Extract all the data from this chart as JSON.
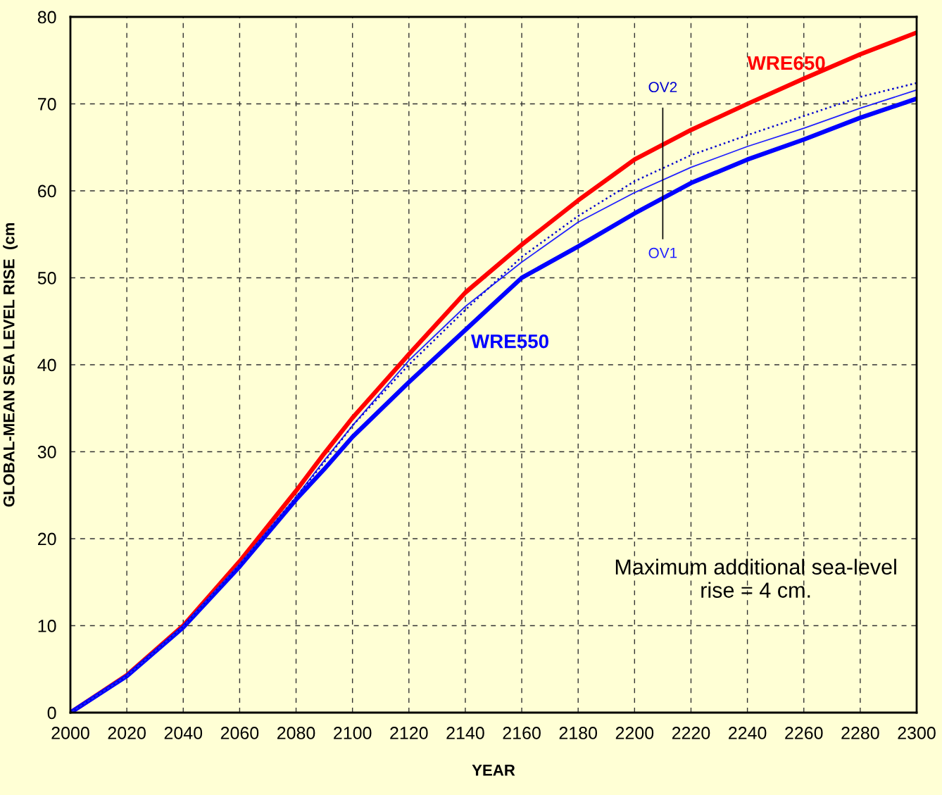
{
  "chart_data": {
    "type": "line",
    "xlabel": "YEAR",
    "ylabel": "GLOBAL-MEAN SEA LEVEL RISE  (cm",
    "x": [
      2000,
      2020,
      2040,
      2060,
      2080,
      2090,
      2100,
      2120,
      2140,
      2160,
      2180,
      2200,
      2220,
      2240,
      2260,
      2280,
      2300
    ],
    "series": [
      {
        "name": "WRE650",
        "color": "#ff0000",
        "line_style": "solid",
        "values": [
          0,
          4.3,
          10,
          17.4,
          25.5,
          29.8,
          33.9,
          41.2,
          48.3,
          53.8,
          58.9,
          63.6,
          67.0,
          70.0,
          72.9,
          75.7,
          78.2
        ]
      },
      {
        "name": "WRE550",
        "color": "#0000ff",
        "line_style": "solid",
        "values": [
          0,
          4.2,
          9.8,
          16.8,
          24.5,
          28.0,
          31.7,
          38.0,
          44.0,
          50.0,
          53.6,
          57.4,
          60.9,
          63.6,
          65.9,
          68.4,
          70.6
        ]
      },
      {
        "name": "OV1",
        "color": "#2020ff",
        "line_style": "solid",
        "values": [
          0,
          4.2,
          9.9,
          17.1,
          24.8,
          29.0,
          33.0,
          40.5,
          46.7,
          51.8,
          56.4,
          59.8,
          62.7,
          65.1,
          67.2,
          69.5,
          71.6
        ]
      },
      {
        "name": "OV2",
        "color": "#0000d0",
        "line_style": "dotted",
        "values": [
          0,
          4.2,
          9.9,
          17.0,
          24.8,
          28.8,
          33.0,
          40.0,
          46.3,
          52.4,
          57.1,
          61.1,
          64.1,
          66.4,
          68.6,
          70.8,
          72.4
        ]
      }
    ],
    "xlim": [
      2000,
      2300
    ],
    "xticks": [
      2000,
      2020,
      2040,
      2060,
      2080,
      2100,
      2120,
      2140,
      2160,
      2180,
      2200,
      2220,
      2240,
      2260,
      2280,
      2300
    ],
    "ylim": [
      0,
      80
    ],
    "yticks": [
      0,
      10,
      20,
      30,
      40,
      50,
      60,
      70,
      80
    ],
    "grid": true,
    "legend": false,
    "marker": "none",
    "annotations": [
      "Maximum additional sea-level\nrise = 4 cm."
    ]
  }
}
